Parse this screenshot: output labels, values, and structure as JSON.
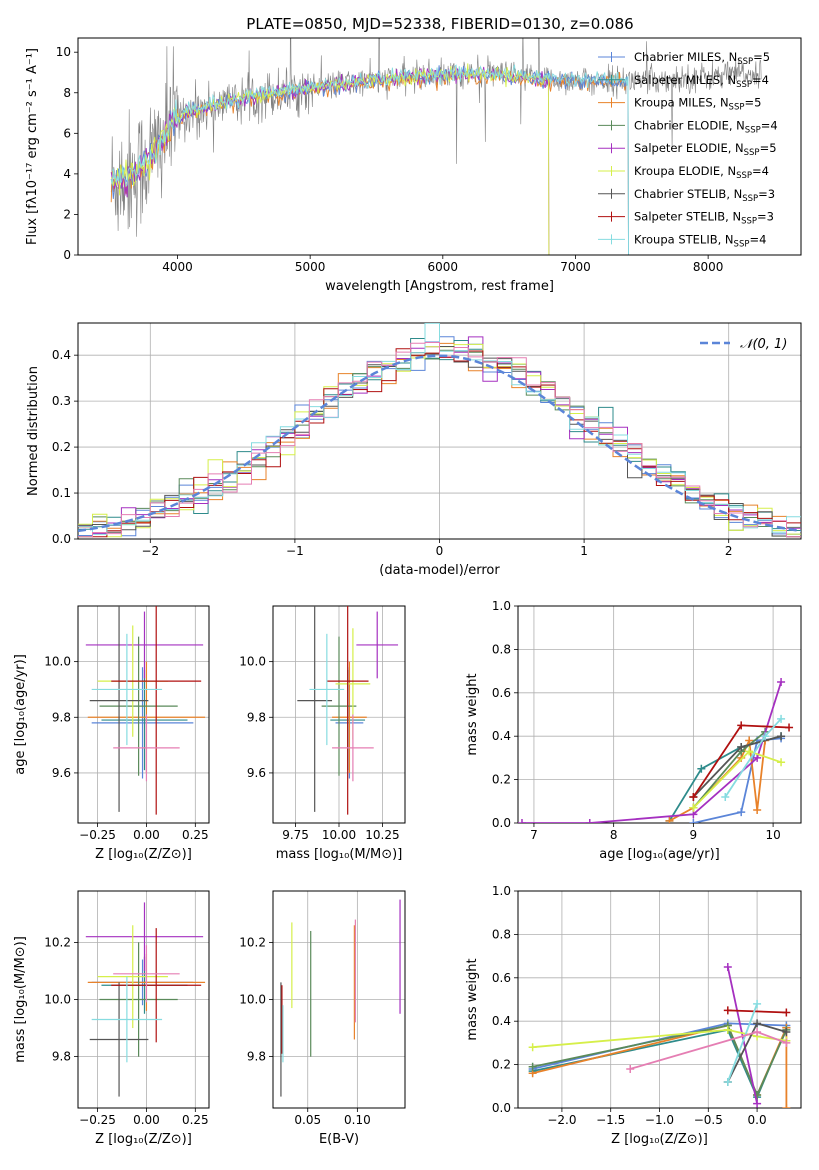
{
  "page_title": "PLATE=0850, MJD=52338, FIBERID=0130, z=0.086",
  "colors": {
    "chabrier_miles": "#5b85d8",
    "salpeter_miles": "#2e8b8b",
    "kroupa_miles": "#e8822a",
    "chabrier_elodie": "#5a8a5a",
    "salpeter_elodie": "#a530c0",
    "kroupa_elodie": "#d6ef4a",
    "chabrier_stelib": "#555555",
    "salpeter_stelib": "#b01010",
    "kroupa_stelib": "#86dce0",
    "pink": "#e57eb3",
    "gray_spectrum": "#808080",
    "normal_curve": "#5b85d8"
  },
  "chart_data": [
    {
      "id": "spectrum",
      "type": "line",
      "title": "PLATE=0850, MJD=52338, FIBERID=0130, z=0.086",
      "xlabel": "wavelength [Angstrom, rest frame]",
      "ylabel": "Flux [fλ10⁻¹⁷ erg cm⁻² s⁻¹ A⁻¹]",
      "xlim": [
        3250,
        8700
      ],
      "ylim": [
        0,
        10.7
      ],
      "xticks": [
        4000,
        5000,
        6000,
        7000,
        8000
      ],
      "yticks": [
        0,
        2,
        4,
        6,
        8,
        10
      ],
      "grid": false,
      "legend_position": "right",
      "legend": [
        {
          "label": "Chabrier MILES, N",
          "sub": "SSP",
          "tail": "=5",
          "color_key": "chabrier_miles"
        },
        {
          "label": "Salpeter MILES, N",
          "sub": "SSP",
          "tail": "=4",
          "color_key": "salpeter_miles"
        },
        {
          "label": "Kroupa MILES, N",
          "sub": "SSP",
          "tail": "=5",
          "color_key": "kroupa_miles"
        },
        {
          "label": "Chabrier ELODIE, N",
          "sub": "SSP",
          "tail": "=4",
          "color_key": "chabrier_elodie"
        },
        {
          "label": "Salpeter ELODIE, N",
          "sub": "SSP",
          "tail": "=5",
          "color_key": "salpeter_elodie"
        },
        {
          "label": "Kroupa ELODIE, N",
          "sub": "SSP",
          "tail": "=4",
          "color_key": "kroupa_elodie"
        },
        {
          "label": "Chabrier STELIB, N",
          "sub": "SSP",
          "tail": "=3",
          "color_key": "chabrier_stelib"
        },
        {
          "label": "Salpeter STELIB, N",
          "sub": "SSP",
          "tail": "=3",
          "color_key": "salpeter_stelib"
        },
        {
          "label": "Kroupa STELIB, N",
          "sub": "SSP",
          "tail": "=4",
          "color_key": "kroupa_stelib"
        }
      ],
      "model_continuum": [
        [
          3500,
          3.6
        ],
        [
          3700,
          4.1
        ],
        [
          3850,
          5.3
        ],
        [
          3950,
          6.4
        ],
        [
          4050,
          7.0
        ],
        [
          4300,
          7.4
        ],
        [
          4600,
          7.9
        ],
        [
          4900,
          8.1
        ],
        [
          5200,
          8.4
        ],
        [
          5500,
          8.6
        ],
        [
          5800,
          8.8
        ],
        [
          6100,
          8.9
        ],
        [
          6400,
          8.9
        ],
        [
          6700,
          8.7
        ],
        [
          7000,
          8.6
        ],
        [
          7400,
          8.6
        ],
        [
          7800,
          8.7
        ],
        [
          8200,
          8.9
        ],
        [
          8400,
          9.0
        ]
      ],
      "model_end": {
        "miles": 7400,
        "elodie": 6800,
        "stelib": 7400
      }
    },
    {
      "id": "residuals",
      "type": "histogram",
      "xlabel": "(data-model)/error",
      "ylabel": "Normed distribution",
      "xlim": [
        -2.5,
        2.5
      ],
      "ylim": [
        0,
        0.47
      ],
      "xticks": [
        -2,
        -1,
        0,
        1,
        2
      ],
      "xtick_labels": [
        "−2",
        "−1",
        "0",
        "1",
        "2"
      ],
      "yticks": [
        0.0,
        0.1,
        0.2,
        0.3,
        0.4
      ],
      "ytick_labels": [
        "0.0",
        "0.1",
        "0.2",
        "0.3",
        "0.4"
      ],
      "grid": true,
      "legend_position": "top-right",
      "curve_label": "𝒩(0, 1)",
      "bin_edges": [
        -2.5,
        2.5
      ],
      "bin_count": 50
    },
    {
      "id": "age_vs_Z",
      "type": "scatter",
      "xlabel": "Z [log₁₀(Z/Z⊙)]",
      "ylabel": "age  [log₁₀(age/yr)]",
      "xlim": [
        -0.35,
        0.32
      ],
      "ylim": [
        9.42,
        10.2
      ],
      "xticks": [
        -0.25,
        0.0,
        0.25
      ],
      "xtick_labels": [
        "−0.25",
        "0.00",
        "0.25"
      ],
      "yticks": [
        9.6,
        9.8,
        10.0
      ],
      "ytick_labels": [
        "9.6",
        "9.8",
        "10.0"
      ],
      "grid": true,
      "points": [
        {
          "x": -0.02,
          "y": 9.78,
          "xerr": 0.26,
          "yerr": 0.2,
          "color_key": "chabrier_miles"
        },
        {
          "x": -0.01,
          "y": 9.79,
          "xerr": 0.22,
          "yerr": 0.18,
          "color_key": "salpeter_miles"
        },
        {
          "x": 0.0,
          "y": 9.8,
          "xerr": 0.3,
          "yerr": 0.2,
          "color_key": "kroupa_miles"
        },
        {
          "x": -0.04,
          "y": 9.84,
          "xerr": 0.2,
          "yerr": 0.25,
          "color_key": "chabrier_elodie"
        },
        {
          "x": -0.01,
          "y": 10.06,
          "xerr": 0.3,
          "yerr": 0.12,
          "color_key": "salpeter_elodie"
        },
        {
          "x": -0.07,
          "y": 9.93,
          "xerr": 0.18,
          "yerr": 0.2,
          "color_key": "kroupa_elodie"
        },
        {
          "x": -0.14,
          "y": 9.86,
          "xerr": 0.15,
          "yerr": 0.4,
          "color_key": "chabrier_stelib"
        },
        {
          "x": 0.05,
          "y": 9.93,
          "xerr": 0.23,
          "yerr": 0.48,
          "color_key": "salpeter_stelib"
        },
        {
          "x": -0.1,
          "y": 9.9,
          "xerr": 0.18,
          "yerr": 0.2,
          "color_key": "kroupa_stelib"
        },
        {
          "x": 0.0,
          "y": 9.69,
          "xerr": 0.17,
          "yerr": 0.12,
          "color_key": "pink"
        }
      ]
    },
    {
      "id": "age_vs_mass",
      "type": "scatter",
      "xlabel": "mass [log₁₀(M/M⊙)]",
      "ylabel": "",
      "xlim": [
        9.62,
        10.38
      ],
      "ylim": [
        9.42,
        10.2
      ],
      "xticks": [
        9.75,
        10.0,
        10.25
      ],
      "xtick_labels": [
        "9.75",
        "10.00",
        "10.25"
      ],
      "yticks": [
        9.6,
        9.8,
        10.0
      ],
      "ytick_labels": [
        "9.6",
        "9.8",
        "10.0"
      ],
      "grid": true,
      "points": [
        {
          "x": 10.06,
          "y": 9.78,
          "xerr": 0.08,
          "yerr": 0.2,
          "color_key": "chabrier_miles"
        },
        {
          "x": 10.05,
          "y": 9.79,
          "xerr": 0.1,
          "yerr": 0.18,
          "color_key": "salpeter_miles"
        },
        {
          "x": 10.06,
          "y": 9.8,
          "xerr": 0.1,
          "yerr": 0.2,
          "color_key": "kroupa_miles"
        },
        {
          "x": 10.0,
          "y": 9.84,
          "xerr": 0.1,
          "yerr": 0.25,
          "color_key": "chabrier_elodie"
        },
        {
          "x": 10.22,
          "y": 10.06,
          "xerr": 0.12,
          "yerr": 0.12,
          "color_key": "salpeter_elodie"
        },
        {
          "x": 10.08,
          "y": 9.92,
          "xerr": 0.1,
          "yerr": 0.2,
          "color_key": "kroupa_elodie"
        },
        {
          "x": 9.86,
          "y": 9.86,
          "xerr": 0.1,
          "yerr": 0.4,
          "color_key": "chabrier_stelib"
        },
        {
          "x": 10.05,
          "y": 9.93,
          "xerr": 0.12,
          "yerr": 0.48,
          "color_key": "salpeter_stelib"
        },
        {
          "x": 9.93,
          "y": 9.9,
          "xerr": 0.1,
          "yerr": 0.2,
          "color_key": "kroupa_stelib"
        },
        {
          "x": 10.08,
          "y": 9.69,
          "xerr": 0.12,
          "yerr": 0.12,
          "color_key": "pink"
        }
      ]
    },
    {
      "id": "weight_vs_age",
      "type": "line",
      "xlabel": "age  [log₁₀(age/yr)]",
      "ylabel": "mass weight",
      "xlim": [
        6.8,
        10.35
      ],
      "ylim": [
        0,
        1.0
      ],
      "xticks": [
        7,
        8,
        9,
        10
      ],
      "xtick_labels": [
        "7",
        "8",
        "9",
        "10"
      ],
      "yticks": [
        0.0,
        0.2,
        0.4,
        0.6,
        0.8,
        1.0
      ],
      "ytick_labels": [
        "0.0",
        "0.2",
        "0.4",
        "0.6",
        "0.8",
        "1.0"
      ],
      "grid": true,
      "series": [
        {
          "color_key": "chabrier_miles",
          "x": [
            9.0,
            9.6,
            9.8,
            10.1
          ],
          "y": [
            0.0,
            0.05,
            0.38,
            0.39
          ]
        },
        {
          "color_key": "salpeter_miles",
          "x": [
            8.7,
            9.1,
            9.6,
            10.1
          ],
          "y": [
            0.01,
            0.25,
            0.35,
            0.4
          ]
        },
        {
          "color_key": "kroupa_miles",
          "x": [
            8.7,
            9.0,
            9.6,
            9.7,
            9.8,
            9.9
          ],
          "y": [
            0.01,
            0.07,
            0.3,
            0.38,
            0.06,
            0.38
          ]
        },
        {
          "color_key": "chabrier_elodie",
          "x": [
            9.0,
            9.6,
            9.9
          ],
          "y": [
            0.07,
            0.33,
            0.42
          ]
        },
        {
          "color_key": "salpeter_elodie",
          "x": [
            6.85,
            7.7,
            9.0,
            9.8,
            10.1
          ],
          "y": [
            0.0,
            0.0,
            0.04,
            0.3,
            0.65
          ]
        },
        {
          "color_key": "kroupa_elodie",
          "x": [
            9.0,
            9.7,
            10.1
          ],
          "y": [
            0.07,
            0.33,
            0.28
          ]
        },
        {
          "color_key": "chabrier_stelib",
          "x": [
            9.0,
            9.6,
            10.1
          ],
          "y": [
            0.12,
            0.35,
            0.4
          ]
        },
        {
          "color_key": "salpeter_stelib",
          "x": [
            9.0,
            9.6,
            10.2
          ],
          "y": [
            0.12,
            0.45,
            0.44
          ]
        },
        {
          "color_key": "kroupa_stelib",
          "x": [
            9.4,
            9.9,
            10.1
          ],
          "y": [
            0.12,
            0.4,
            0.48
          ]
        }
      ]
    },
    {
      "id": "mass_vs_Z",
      "type": "scatter",
      "xlabel": "Z [log₁₀(Z/Z⊙)]",
      "ylabel": "mass [log₁₀(M/M⊙)]",
      "xlim": [
        -0.35,
        0.32
      ],
      "ylim": [
        9.62,
        10.38
      ],
      "xticks": [
        -0.25,
        0.0,
        0.25
      ],
      "xtick_labels": [
        "−0.25",
        "0.00",
        "0.25"
      ],
      "yticks": [
        9.8,
        10.0,
        10.2
      ],
      "ytick_labels": [
        "9.8",
        "10.0",
        "10.2"
      ],
      "grid": true,
      "points": [
        {
          "x": -0.02,
          "y": 10.06,
          "xerr": 0.26,
          "yerr": 0.08,
          "color_key": "chabrier_miles"
        },
        {
          "x": -0.01,
          "y": 10.05,
          "xerr": 0.22,
          "yerr": 0.1,
          "color_key": "salpeter_miles"
        },
        {
          "x": 0.0,
          "y": 10.06,
          "xerr": 0.3,
          "yerr": 0.1,
          "color_key": "kroupa_miles"
        },
        {
          "x": -0.04,
          "y": 10.0,
          "xerr": 0.2,
          "yerr": 0.2,
          "color_key": "chabrier_elodie"
        },
        {
          "x": -0.01,
          "y": 10.22,
          "xerr": 0.3,
          "yerr": 0.12,
          "color_key": "salpeter_elodie"
        },
        {
          "x": -0.07,
          "y": 10.08,
          "xerr": 0.18,
          "yerr": 0.18,
          "color_key": "kroupa_elodie"
        },
        {
          "x": -0.14,
          "y": 9.86,
          "xerr": 0.15,
          "yerr": 0.2,
          "color_key": "chabrier_stelib"
        },
        {
          "x": 0.05,
          "y": 10.05,
          "xerr": 0.23,
          "yerr": 0.2,
          "color_key": "salpeter_stelib"
        },
        {
          "x": -0.1,
          "y": 9.93,
          "xerr": 0.18,
          "yerr": 0.15,
          "color_key": "kroupa_stelib"
        },
        {
          "x": 0.0,
          "y": 10.09,
          "xerr": 0.17,
          "yerr": 0.1,
          "color_key": "pink"
        }
      ]
    },
    {
      "id": "mass_vs_EBV",
      "type": "scatter",
      "xlabel": "E(B-V)",
      "ylabel": "",
      "xlim": [
        0.015,
        0.148
      ],
      "ylim": [
        9.62,
        10.38
      ],
      "xticks": [
        0.05,
        0.1
      ],
      "xtick_labels": [
        "0.05",
        "0.10"
      ],
      "yticks": [
        9.8,
        10.0,
        10.2
      ],
      "ytick_labels": [
        "9.8",
        "10.0",
        "10.2"
      ],
      "grid": true,
      "points": [
        {
          "x": 0.023,
          "y": 9.86,
          "xerr": 0.0,
          "yerr": 0.2,
          "color_key": "chabrier_stelib"
        },
        {
          "x": 0.024,
          "y": 9.93,
          "xerr": 0.0,
          "yerr": 0.12,
          "color_key": "salpeter_stelib"
        },
        {
          "x": 0.025,
          "y": 9.88,
          "xerr": 0.0,
          "yerr": 0.1,
          "color_key": "kroupa_stelib"
        },
        {
          "x": 0.034,
          "y": 10.12,
          "xerr": 0.0,
          "yerr": 0.15,
          "color_key": "kroupa_elodie"
        },
        {
          "x": 0.053,
          "y": 10.02,
          "xerr": 0.0,
          "yerr": 0.22,
          "color_key": "chabrier_elodie"
        },
        {
          "x": 0.097,
          "y": 10.06,
          "xerr": 0.0,
          "yerr": 0.2,
          "color_key": "kroupa_miles"
        },
        {
          "x": 0.098,
          "y": 10.1,
          "xerr": 0.0,
          "yerr": 0.18,
          "color_key": "pink"
        },
        {
          "x": 0.143,
          "y": 10.15,
          "xerr": 0.0,
          "yerr": 0.2,
          "color_key": "salpeter_elodie"
        }
      ]
    },
    {
      "id": "weight_vs_Z",
      "type": "line",
      "xlabel": "Z [log₁₀(Z/Z⊙)]",
      "ylabel": "mass weight",
      "xlim": [
        -2.45,
        0.45
      ],
      "ylim": [
        0,
        1.0
      ],
      "xticks": [
        -2.0,
        -1.5,
        -1.0,
        -0.5,
        0.0
      ],
      "xtick_labels": [
        "−2.0",
        "−1.5",
        "−1.0",
        "−0.5",
        "0.0"
      ],
      "yticks": [
        0.0,
        0.2,
        0.4,
        0.6,
        0.8,
        1.0
      ],
      "ytick_labels": [
        "0.0",
        "0.2",
        "0.4",
        "0.6",
        "0.8",
        "1.0"
      ],
      "grid": true,
      "series": [
        {
          "color_key": "chabrier_miles",
          "x": [
            -2.3,
            -0.3,
            0.3
          ],
          "y": [
            0.18,
            0.39,
            0.38
          ]
        },
        {
          "color_key": "salpeter_miles",
          "x": [
            -2.3,
            -0.3,
            0.0,
            0.3
          ],
          "y": [
            0.17,
            0.36,
            0.05,
            0.37
          ]
        },
        {
          "color_key": "kroupa_miles",
          "x": [
            -2.3,
            -0.3,
            0.0,
            0.3,
            0.3
          ],
          "y": [
            0.16,
            0.38,
            0.06,
            0.37,
            0.0
          ]
        },
        {
          "color_key": "chabrier_elodie",
          "x": [
            -2.3,
            -0.3,
            0.0,
            0.3
          ],
          "y": [
            0.19,
            0.38,
            0.06,
            0.36
          ]
        },
        {
          "color_key": "salpeter_elodie",
          "x": [
            -0.3,
            0.0
          ],
          "y": [
            0.65,
            0.02
          ]
        },
        {
          "color_key": "kroupa_elodie",
          "x": [
            -2.3,
            -0.3,
            0.0,
            0.3
          ],
          "y": [
            0.28,
            0.36,
            0.33,
            0.31
          ]
        },
        {
          "color_key": "chabrier_stelib",
          "x": [
            -0.3,
            0.0,
            0.3
          ],
          "y": [
            0.12,
            0.39,
            0.35
          ]
        },
        {
          "color_key": "salpeter_stelib",
          "x": [
            -0.3,
            0.3
          ],
          "y": [
            0.45,
            0.44
          ]
        },
        {
          "color_key": "kroupa_stelib",
          "x": [
            -0.3,
            0.0
          ],
          "y": [
            0.12,
            0.48
          ]
        },
        {
          "color_key": "pink",
          "x": [
            -1.3,
            0.0,
            0.3
          ],
          "y": [
            0.18,
            0.35,
            0.3
          ]
        }
      ]
    }
  ]
}
